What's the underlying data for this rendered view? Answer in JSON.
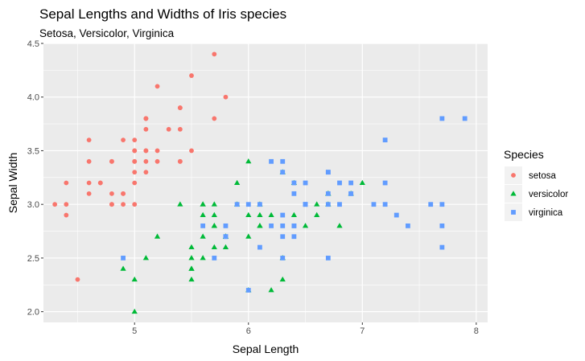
{
  "chart_data": {
    "type": "scatter",
    "title": "Sepal Lengths and Widths of Iris species",
    "subtitle": "Setosa, Versicolor, Virginica",
    "xlabel": "Sepal Length",
    "ylabel": "Sepal Width",
    "xlim": [
      4.2,
      8.1
    ],
    "ylim": [
      1.9,
      4.5
    ],
    "xticks": [
      "5",
      "6",
      "7",
      "8"
    ],
    "yticks": [
      "2.0",
      "2.5",
      "3.0",
      "3.5",
      "4.0",
      "4.5"
    ],
    "grid": true,
    "legend": {
      "title": "Species",
      "position": "right"
    },
    "series": [
      {
        "name": "setosa",
        "shape": "circle",
        "color": "#F8766D",
        "points": [
          [
            5.1,
            3.5
          ],
          [
            4.9,
            3.0
          ],
          [
            4.7,
            3.2
          ],
          [
            4.6,
            3.1
          ],
          [
            5.0,
            3.6
          ],
          [
            5.4,
            3.9
          ],
          [
            4.6,
            3.4
          ],
          [
            5.0,
            3.4
          ],
          [
            4.4,
            2.9
          ],
          [
            4.9,
            3.1
          ],
          [
            5.4,
            3.7
          ],
          [
            4.8,
            3.4
          ],
          [
            4.8,
            3.0
          ],
          [
            4.3,
            3.0
          ],
          [
            5.8,
            4.0
          ],
          [
            5.7,
            4.4
          ],
          [
            5.4,
            3.9
          ],
          [
            5.1,
            3.5
          ],
          [
            5.7,
            3.8
          ],
          [
            5.1,
            3.8
          ],
          [
            5.4,
            3.4
          ],
          [
            5.1,
            3.7
          ],
          [
            4.6,
            3.6
          ],
          [
            5.1,
            3.3
          ],
          [
            4.8,
            3.4
          ],
          [
            5.0,
            3.0
          ],
          [
            5.0,
            3.4
          ],
          [
            5.2,
            3.5
          ],
          [
            5.2,
            3.4
          ],
          [
            4.7,
            3.2
          ],
          [
            4.8,
            3.1
          ],
          [
            5.4,
            3.4
          ],
          [
            5.2,
            4.1
          ],
          [
            5.5,
            4.2
          ],
          [
            4.9,
            3.1
          ],
          [
            5.0,
            3.2
          ],
          [
            5.5,
            3.5
          ],
          [
            4.9,
            3.6
          ],
          [
            4.4,
            3.0
          ],
          [
            5.1,
            3.4
          ],
          [
            5.0,
            3.5
          ],
          [
            4.5,
            2.3
          ],
          [
            4.4,
            3.2
          ],
          [
            5.0,
            3.5
          ],
          [
            5.1,
            3.8
          ],
          [
            4.8,
            3.0
          ],
          [
            5.1,
            3.8
          ],
          [
            4.6,
            3.2
          ],
          [
            5.3,
            3.7
          ],
          [
            5.0,
            3.3
          ]
        ]
      },
      {
        "name": "versicolor",
        "shape": "triangle",
        "color": "#00BA38",
        "points": [
          [
            7.0,
            3.2
          ],
          [
            6.4,
            3.2
          ],
          [
            6.9,
            3.1
          ],
          [
            5.5,
            2.3
          ],
          [
            6.5,
            2.8
          ],
          [
            5.7,
            2.8
          ],
          [
            6.3,
            3.3
          ],
          [
            4.9,
            2.4
          ],
          [
            6.6,
            2.9
          ],
          [
            5.2,
            2.7
          ],
          [
            5.0,
            2.0
          ],
          [
            5.9,
            3.0
          ],
          [
            6.0,
            2.2
          ],
          [
            6.1,
            2.9
          ],
          [
            5.6,
            2.9
          ],
          [
            6.7,
            3.1
          ],
          [
            5.6,
            3.0
          ],
          [
            5.8,
            2.7
          ],
          [
            6.2,
            2.2
          ],
          [
            5.6,
            2.5
          ],
          [
            5.9,
            3.2
          ],
          [
            6.1,
            2.8
          ],
          [
            6.3,
            2.5
          ],
          [
            6.1,
            2.8
          ],
          [
            6.4,
            2.9
          ],
          [
            6.6,
            3.0
          ],
          [
            6.8,
            2.8
          ],
          [
            6.7,
            3.0
          ],
          [
            6.0,
            2.9
          ],
          [
            5.7,
            2.6
          ],
          [
            5.5,
            2.4
          ],
          [
            5.5,
            2.4
          ],
          [
            5.8,
            2.7
          ],
          [
            6.0,
            2.7
          ],
          [
            5.4,
            3.0
          ],
          [
            6.0,
            3.4
          ],
          [
            6.7,
            3.1
          ],
          [
            6.3,
            2.3
          ],
          [
            5.6,
            3.0
          ],
          [
            5.5,
            2.5
          ],
          [
            5.5,
            2.6
          ],
          [
            6.1,
            3.0
          ],
          [
            5.8,
            2.6
          ],
          [
            5.0,
            2.3
          ],
          [
            5.6,
            2.7
          ],
          [
            5.7,
            3.0
          ],
          [
            5.7,
            2.9
          ],
          [
            6.2,
            2.9
          ],
          [
            5.1,
            2.5
          ],
          [
            5.7,
            2.8
          ]
        ]
      },
      {
        "name": "virginica",
        "shape": "square",
        "color": "#619CFF",
        "points": [
          [
            6.3,
            3.3
          ],
          [
            5.8,
            2.7
          ],
          [
            7.1,
            3.0
          ],
          [
            6.3,
            2.9
          ],
          [
            6.5,
            3.0
          ],
          [
            7.6,
            3.0
          ],
          [
            4.9,
            2.5
          ],
          [
            7.3,
            2.9
          ],
          [
            6.7,
            2.5
          ],
          [
            7.2,
            3.6
          ],
          [
            6.5,
            3.2
          ],
          [
            6.4,
            2.7
          ],
          [
            6.8,
            3.0
          ],
          [
            5.7,
            2.5
          ],
          [
            5.8,
            2.8
          ],
          [
            6.4,
            3.2
          ],
          [
            6.5,
            3.0
          ],
          [
            7.7,
            3.8
          ],
          [
            7.7,
            2.6
          ],
          [
            6.0,
            2.2
          ],
          [
            6.9,
            3.2
          ],
          [
            5.6,
            2.8
          ],
          [
            7.7,
            2.8
          ],
          [
            6.3,
            2.7
          ],
          [
            6.7,
            3.3
          ],
          [
            7.2,
            3.2
          ],
          [
            6.2,
            2.8
          ],
          [
            6.1,
            3.0
          ],
          [
            6.4,
            2.8
          ],
          [
            7.2,
            3.0
          ],
          [
            7.4,
            2.8
          ],
          [
            7.9,
            3.8
          ],
          [
            6.4,
            2.8
          ],
          [
            6.3,
            2.8
          ],
          [
            6.1,
            2.6
          ],
          [
            7.7,
            3.0
          ],
          [
            6.3,
            3.4
          ],
          [
            6.4,
            3.1
          ],
          [
            6.0,
            3.0
          ],
          [
            6.9,
            3.1
          ],
          [
            6.7,
            3.1
          ],
          [
            6.9,
            3.1
          ],
          [
            5.8,
            2.7
          ],
          [
            6.8,
            3.2
          ],
          [
            6.7,
            3.3
          ],
          [
            6.7,
            3.0
          ],
          [
            6.3,
            2.5
          ],
          [
            6.5,
            3.0
          ],
          [
            6.2,
            3.4
          ],
          [
            5.9,
            3.0
          ]
        ]
      }
    ]
  }
}
